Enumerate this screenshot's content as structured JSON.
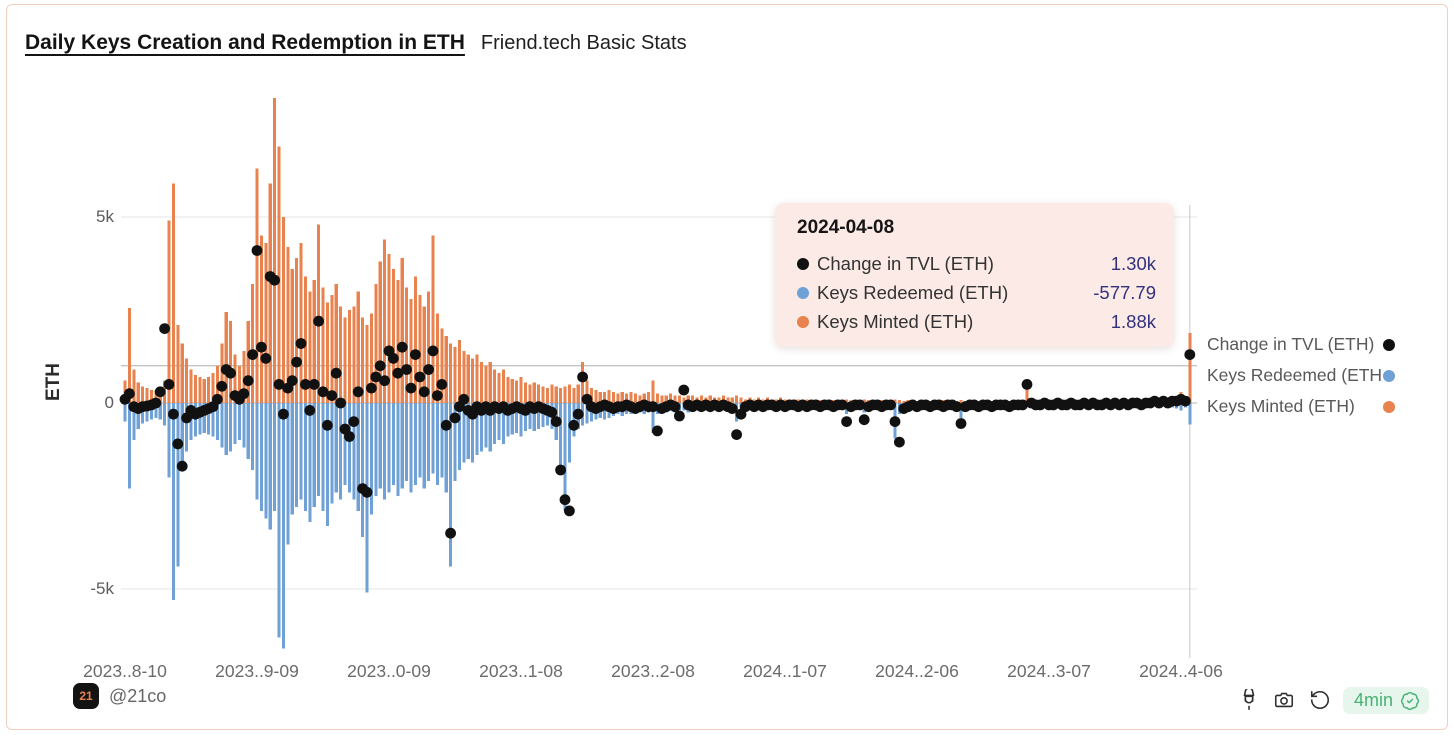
{
  "header": {
    "title": "Daily Keys Creation and Redemption in ETH",
    "subtitle": "Friend.tech Basic Stats"
  },
  "axis": {
    "y_label": "ETH",
    "y_ticks": [
      "5k",
      "0",
      "-5k"
    ],
    "x_ticks": [
      "2023..8-10",
      "2023..9-09",
      "2023..0-09",
      "2023..1-08",
      "2023..2-08",
      "2024..1-07",
      "2024..2-06",
      "2024..3-07",
      "2024..4-06"
    ]
  },
  "legend": {
    "items": [
      {
        "label": "Change in TVL (ETH)",
        "color": "#111111"
      },
      {
        "label": "Keys Redeemed (ETH)",
        "color": "#6fa0d6"
      },
      {
        "label": "Keys Minted (ETH)",
        "color": "#e8824e"
      }
    ]
  },
  "tooltip": {
    "date": "2024-04-08",
    "rows": [
      {
        "label": "Change in TVL (ETH)",
        "value": "1.30k",
        "color": "#111111"
      },
      {
        "label": "Keys Redeemed (ETH)",
        "value": "-577.79",
        "color": "#6fa0d6"
      },
      {
        "label": "Keys Minted (ETH)",
        "value": "1.88k",
        "color": "#e8824e"
      }
    ]
  },
  "footer": {
    "logo_text": "21",
    "handle": "@21co",
    "refresh_badge": "4min",
    "icons": [
      "plug-icon",
      "camera-icon",
      "rotate-ccw-icon",
      "verified-seal-icon"
    ]
  },
  "chart_data": {
    "type": "combo",
    "title": "Daily Keys Creation and Redemption in ETH",
    "ylabel": "ETH",
    "unit": "thousand ETH (k)",
    "frequency": "daily",
    "start_date": "2023-08-10",
    "end_date": "2024-04-08",
    "ylim_k": [
      -7.2,
      8.6
    ],
    "grid_values_k": [
      5,
      -5
    ],
    "x_tick_day_index": [
      0,
      30,
      60,
      90,
      120,
      150,
      180,
      210,
      240
    ],
    "x_tick_labels": [
      "2023..8-10",
      "2023..9-09",
      "2023..0-09",
      "2023..1-08",
      "2023..2-08",
      "2024..1-07",
      "2024..2-06",
      "2024..3-07",
      "2024..4-06"
    ],
    "legend_position": "right",
    "hover": {
      "date": "2024-04-08",
      "day_index": 242,
      "change_in_tvl": "1.30k",
      "keys_redeemed": "-577.79",
      "keys_minted": "1.88k",
      "crosshair_h_value_k": 1.0
    },
    "series": [
      {
        "name": "Keys Minted (ETH)",
        "type": "bar",
        "color": "#e8824e",
        "values_k": [
          0.6,
          2.55,
          0.9,
          0.55,
          0.45,
          0.4,
          0.35,
          0.35,
          0.4,
          0.6,
          4.9,
          5.9,
          2.1,
          1.6,
          1.2,
          0.9,
          0.75,
          0.7,
          0.65,
          0.7,
          0.8,
          1.0,
          1.6,
          2.45,
          2.2,
          1.3,
          1.0,
          1.4,
          2.2,
          3.2,
          6.3,
          4.5,
          4.3,
          5.9,
          8.2,
          6.9,
          5.0,
          4.2,
          3.6,
          3.9,
          4.3,
          3.4,
          3.0,
          3.3,
          4.8,
          3.1,
          2.7,
          2.9,
          3.2,
          2.6,
          2.3,
          2.5,
          2.6,
          3.0,
          2.3,
          2.1,
          2.4,
          3.2,
          3.8,
          4.4,
          4.0,
          3.6,
          3.3,
          3.9,
          3.1,
          2.8,
          3.4,
          2.9,
          2.6,
          3.0,
          4.5,
          2.4,
          2.0,
          1.8,
          1.6,
          1.5,
          1.7,
          1.4,
          1.3,
          1.2,
          1.3,
          1.1,
          1.0,
          1.1,
          0.9,
          0.8,
          0.9,
          0.7,
          0.65,
          0.6,
          0.7,
          0.55,
          0.5,
          0.55,
          0.5,
          0.45,
          0.4,
          0.5,
          0.45,
          0.4,
          0.45,
          0.5,
          0.4,
          0.5,
          1.1,
          0.6,
          0.4,
          0.35,
          0.3,
          0.3,
          0.35,
          0.3,
          0.25,
          0.3,
          0.25,
          0.3,
          0.25,
          0.2,
          0.25,
          0.3,
          0.6,
          0.25,
          0.2,
          0.2,
          0.25,
          0.2,
          0.2,
          0.15,
          0.2,
          0.2,
          0.15,
          0.2,
          0.15,
          0.2,
          0.15,
          0.15,
          0.2,
          0.15,
          0.15,
          0.2,
          0.15,
          0.1,
          0.15,
          0.1,
          0.15,
          0.1,
          0.15,
          0.1,
          0.1,
          0.15,
          0.1,
          0.1,
          0.1,
          0.1,
          0.1,
          0.1,
          0.08,
          0.1,
          0.08,
          0.08,
          0.1,
          0.08,
          0.08,
          0.08,
          0.1,
          0.08,
          0.08,
          0.08,
          0.1,
          0.08,
          0.08,
          0.06,
          0.08,
          0.06,
          0.08,
          0.1,
          0.08,
          0.06,
          0.08,
          0.06,
          0.06,
          0.08,
          0.06,
          0.06,
          0.06,
          0.06,
          0.08,
          0.06,
          0.06,
          0.05,
          0.08,
          0.06,
          0.05,
          0.06,
          0.05,
          0.06,
          0.05,
          0.05,
          0.06,
          0.05,
          0.05,
          0.06,
          0.05,
          0.05,
          0.06,
          0.6,
          0.08,
          0.06,
          0.06,
          0.05,
          0.06,
          0.05,
          0.06,
          0.05,
          0.06,
          0.05,
          0.05,
          0.06,
          0.05,
          0.06,
          0.05,
          0.05,
          0.06,
          0.05,
          0.05,
          0.06,
          0.05,
          0.06,
          0.05,
          0.05,
          0.06,
          0.05,
          0.06,
          0.05,
          0.06,
          0.08,
          0.06,
          0.08,
          0.1,
          0.12,
          0.3,
          0.15,
          1.88
        ]
      },
      {
        "name": "Keys Redeemed (ETH)",
        "type": "bar",
        "color": "#6fa0d6",
        "values_k": [
          -0.5,
          -2.3,
          -1.0,
          -0.7,
          -0.55,
          -0.5,
          -0.45,
          -0.4,
          -0.45,
          -0.6,
          -2.0,
          -5.3,
          -4.4,
          -1.8,
          -1.3,
          -1.0,
          -0.9,
          -0.85,
          -0.8,
          -0.85,
          -0.9,
          -1.0,
          -1.2,
          -1.4,
          -1.3,
          -1.1,
          -1.0,
          -1.2,
          -1.5,
          -1.8,
          -2.6,
          -2.9,
          -3.1,
          -3.4,
          -2.9,
          -6.3,
          -6.6,
          -3.8,
          -3.0,
          -2.8,
          -2.6,
          -2.9,
          -3.2,
          -2.8,
          -2.5,
          -2.9,
          -3.3,
          -2.7,
          -2.4,
          -2.6,
          -2.2,
          -2.4,
          -2.6,
          -2.9,
          -3.6,
          -5.1,
          -3.0,
          -2.5,
          -2.3,
          -2.6,
          -2.4,
          -2.2,
          -2.5,
          -2.3,
          -2.1,
          -2.4,
          -2.2,
          -2.0,
          -2.3,
          -2.1,
          -1.9,
          -2.2,
          -2.0,
          -2.4,
          -4.4,
          -2.1,
          -1.8,
          -1.6,
          -1.5,
          -1.6,
          -1.4,
          -1.3,
          -1.2,
          -1.3,
          -1.1,
          -1.0,
          -1.1,
          -0.9,
          -0.85,
          -0.8,
          -0.9,
          -0.75,
          -0.7,
          -0.75,
          -0.7,
          -0.65,
          -0.6,
          -0.7,
          -1.0,
          -1.9,
          -2.9,
          -1.6,
          -0.9,
          -0.7,
          -0.6,
          -0.55,
          -0.5,
          -0.45,
          -0.4,
          -0.45,
          -0.4,
          -0.35,
          -0.3,
          -0.35,
          -0.3,
          -0.3,
          -0.25,
          -0.25,
          -0.3,
          -0.25,
          -0.8,
          -0.3,
          -0.25,
          -0.25,
          -0.2,
          -0.25,
          -0.2,
          -0.2,
          -0.25,
          -0.2,
          -0.2,
          -0.15,
          -0.2,
          -0.2,
          -0.15,
          -0.2,
          -0.15,
          -0.15,
          -0.2,
          -0.5,
          -0.25,
          -0.15,
          -0.15,
          -0.1,
          -0.15,
          -0.1,
          -0.15,
          -0.1,
          -0.1,
          -0.15,
          -0.1,
          -0.1,
          -0.1,
          -0.1,
          -0.1,
          -0.1,
          -0.1,
          -0.08,
          -0.1,
          -0.08,
          -0.1,
          -0.08,
          -0.08,
          -0.1,
          -0.3,
          -0.1,
          -0.08,
          -0.1,
          -0.25,
          -0.1,
          -0.08,
          -0.08,
          -0.1,
          -0.08,
          -0.08,
          -0.95,
          -0.3,
          -0.1,
          -0.08,
          -0.08,
          -0.1,
          -0.08,
          -0.08,
          -0.06,
          -0.08,
          -0.08,
          -0.06,
          -0.08,
          -0.06,
          -0.08,
          -0.4,
          -0.15,
          -0.08,
          -0.06,
          -0.08,
          -0.06,
          -0.08,
          -0.06,
          -0.06,
          -0.08,
          -0.06,
          -0.06,
          -0.08,
          -0.06,
          -0.08,
          -0.1,
          -0.08,
          -0.06,
          -0.08,
          -0.06,
          -0.06,
          -0.08,
          -0.06,
          -0.06,
          -0.08,
          -0.06,
          -0.06,
          -0.08,
          -0.06,
          -0.06,
          -0.08,
          -0.06,
          -0.06,
          -0.08,
          -0.06,
          -0.06,
          -0.08,
          -0.06,
          -0.06,
          -0.08,
          -0.06,
          -0.06,
          -0.08,
          -0.06,
          -0.08,
          -0.1,
          -0.08,
          -0.1,
          -0.12,
          -0.15,
          -0.2,
          -0.12,
          -0.578
        ]
      },
      {
        "name": "Change in TVL (ETH)",
        "type": "scatter",
        "color": "#111111",
        "values_k": [
          0.1,
          0.25,
          -0.1,
          -0.15,
          -0.1,
          -0.08,
          -0.05,
          0.0,
          0.3,
          2.0,
          0.5,
          -0.3,
          -1.1,
          -1.7,
          -0.4,
          -0.2,
          -0.3,
          -0.25,
          -0.2,
          -0.15,
          -0.1,
          0.1,
          0.45,
          0.9,
          0.8,
          0.2,
          0.1,
          0.25,
          0.6,
          1.3,
          4.1,
          1.5,
          1.2,
          3.4,
          3.3,
          0.5,
          -0.3,
          0.4,
          0.6,
          1.1,
          1.6,
          0.5,
          -0.2,
          0.5,
          2.2,
          0.3,
          -0.6,
          0.2,
          0.8,
          0.0,
          -0.7,
          -0.9,
          -0.5,
          0.3,
          -2.3,
          -2.4,
          0.4,
          0.7,
          1.0,
          0.6,
          1.4,
          1.2,
          0.8,
          1.5,
          0.9,
          0.4,
          1.3,
          0.7,
          0.3,
          0.9,
          1.4,
          0.2,
          0.5,
          -0.6,
          -3.5,
          -0.4,
          -0.1,
          0.1,
          -0.2,
          -0.3,
          -0.1,
          -0.2,
          -0.1,
          -0.2,
          -0.1,
          -0.15,
          -0.1,
          -0.2,
          -0.15,
          -0.1,
          -0.15,
          -0.2,
          -0.1,
          -0.15,
          -0.1,
          -0.15,
          -0.2,
          -0.25,
          -0.5,
          -1.8,
          -2.6,
          -2.9,
          -0.6,
          -0.3,
          0.7,
          0.1,
          -0.1,
          -0.15,
          -0.1,
          -0.05,
          -0.1,
          -0.15,
          -0.1,
          -0.1,
          -0.05,
          -0.1,
          -0.15,
          -0.1,
          -0.05,
          -0.1,
          -0.1,
          -0.75,
          -0.15,
          -0.1,
          -0.05,
          -0.1,
          -0.35,
          0.35,
          -0.05,
          -0.1,
          -0.05,
          -0.1,
          -0.05,
          -0.1,
          -0.05,
          -0.1,
          -0.05,
          -0.1,
          -0.15,
          -0.85,
          -0.3,
          -0.1,
          -0.05,
          -0.1,
          -0.05,
          -0.1,
          -0.05,
          -0.05,
          -0.1,
          -0.05,
          -0.1,
          -0.05,
          -0.05,
          -0.1,
          -0.05,
          -0.1,
          -0.05,
          -0.05,
          -0.1,
          -0.05,
          -0.05,
          -0.1,
          -0.05,
          -0.05,
          -0.5,
          -0.1,
          -0.05,
          -0.05,
          -0.45,
          -0.1,
          -0.05,
          -0.05,
          -0.1,
          -0.05,
          -0.05,
          -0.5,
          -1.05,
          -0.15,
          -0.1,
          -0.05,
          -0.1,
          -0.05,
          -0.05,
          -0.1,
          -0.05,
          -0.05,
          -0.1,
          -0.05,
          -0.05,
          -0.1,
          -0.55,
          -0.1,
          -0.05,
          -0.05,
          -0.1,
          -0.05,
          -0.05,
          -0.1,
          -0.05,
          -0.05,
          -0.05,
          -0.1,
          -0.05,
          -0.05,
          -0.05,
          0.5,
          0.0,
          -0.05,
          -0.05,
          0.0,
          -0.05,
          -0.05,
          0.0,
          -0.05,
          -0.05,
          0.0,
          -0.05,
          -0.05,
          0.0,
          -0.05,
          0.0,
          -0.05,
          -0.05,
          0.0,
          -0.05,
          0.0,
          -0.05,
          0.0,
          -0.05,
          0.0,
          0.0,
          -0.05,
          0.0,
          0.0,
          0.05,
          0.0,
          0.05,
          0.0,
          0.05,
          0.05,
          0.1,
          0.05,
          1.3
        ]
      }
    ]
  }
}
